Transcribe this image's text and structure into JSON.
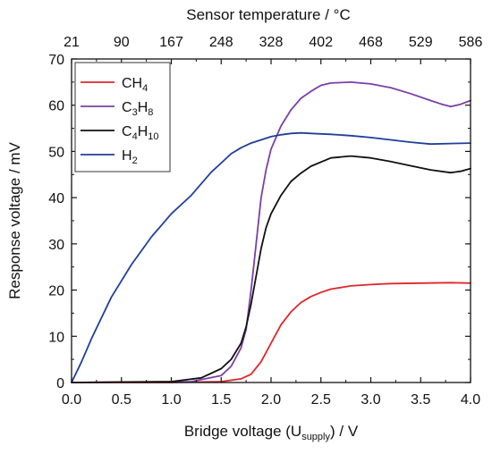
{
  "chart_data": {
    "type": "line",
    "xlabel": "Bridge voltage (U",
    "xlabel_sub": "supply",
    "xlabel_suffix": ") / V",
    "ylabel": "Response voltage / mV",
    "top_xlabel": "Sensor temperature / °C",
    "xlim": [
      0,
      4.0
    ],
    "ylim": [
      0,
      70
    ],
    "x_ticks": [
      "0.0",
      "0.5",
      "1.0",
      "1.5",
      "2.0",
      "2.5",
      "3.0",
      "3.5",
      "4.0"
    ],
    "x_tick_values": [
      0.0,
      0.5,
      1.0,
      1.5,
      2.0,
      2.5,
      3.0,
      3.5,
      4.0
    ],
    "y_ticks": [
      "0",
      "10",
      "20",
      "30",
      "40",
      "50",
      "60",
      "70"
    ],
    "y_tick_values": [
      0,
      10,
      20,
      30,
      40,
      50,
      60,
      70
    ],
    "top_ticks": [
      "21",
      "90",
      "167",
      "248",
      "328",
      "402",
      "468",
      "529",
      "586"
    ],
    "grid": false,
    "legend_position": "top-left",
    "series": [
      {
        "name": "CH4",
        "legend_main": "CH",
        "legend_sub": "4",
        "color": "#e0262b",
        "x": [
          0.0,
          1.0,
          1.5,
          1.7,
          1.8,
          1.9,
          2.0,
          2.1,
          2.2,
          2.3,
          2.4,
          2.5,
          2.6,
          2.8,
          3.0,
          3.2,
          3.5,
          3.8,
          4.0
        ],
        "y": [
          0,
          0,
          0.2,
          0.8,
          1.8,
          4.5,
          8.5,
          12.5,
          15.3,
          17.3,
          18.6,
          19.5,
          20.2,
          20.9,
          21.2,
          21.4,
          21.5,
          21.6,
          21.5
        ]
      },
      {
        "name": "C3H8",
        "legend_main": "C",
        "legend_sub": "3",
        "legend_main2": "H",
        "legend_sub2": "8",
        "color": "#7b3fa6",
        "x": [
          0.0,
          1.2,
          1.5,
          1.6,
          1.7,
          1.75,
          1.8,
          1.85,
          1.9,
          1.95,
          2.0,
          2.1,
          2.2,
          2.3,
          2.4,
          2.5,
          2.6,
          2.8,
          3.0,
          3.2,
          3.4,
          3.6,
          3.7,
          3.8,
          3.9,
          4.0
        ],
        "y": [
          0,
          0.2,
          1.5,
          3.5,
          7.5,
          11.5,
          20.0,
          30.0,
          40.0,
          46.0,
          50.5,
          55.5,
          59.0,
          61.5,
          63.0,
          64.3,
          64.8,
          65.0,
          64.6,
          63.8,
          62.5,
          61.0,
          60.3,
          59.7,
          60.2,
          61.0
        ]
      },
      {
        "name": "C4H10",
        "legend_main": "C",
        "legend_sub": "4",
        "legend_main2": "H",
        "legend_sub2": "10",
        "color": "#111111",
        "x": [
          0.0,
          1.0,
          1.3,
          1.5,
          1.6,
          1.7,
          1.75,
          1.8,
          1.85,
          1.9,
          1.95,
          2.0,
          2.1,
          2.2,
          2.3,
          2.4,
          2.6,
          2.8,
          3.0,
          3.2,
          3.4,
          3.6,
          3.8,
          3.9,
          4.0
        ],
        "y": [
          0,
          0.2,
          1.0,
          3.0,
          5.0,
          8.5,
          12.0,
          17.0,
          23.0,
          29.0,
          33.5,
          36.5,
          40.5,
          43.5,
          45.3,
          46.8,
          48.6,
          49.0,
          48.6,
          47.8,
          46.9,
          46.0,
          45.4,
          45.7,
          46.3
        ]
      },
      {
        "name": "H2",
        "legend_main": "H",
        "legend_sub": "2",
        "color": "#1f3f99",
        "x": [
          0.0,
          0.1,
          0.2,
          0.3,
          0.4,
          0.5,
          0.6,
          0.7,
          0.8,
          0.9,
          1.0,
          1.1,
          1.2,
          1.3,
          1.4,
          1.5,
          1.6,
          1.7,
          1.8,
          1.9,
          2.0,
          2.1,
          2.2,
          2.3,
          2.4,
          2.6,
          2.8,
          3.0,
          3.2,
          3.4,
          3.6,
          3.8,
          4.0
        ],
        "y": [
          0,
          4.5,
          9.5,
          14.0,
          18.5,
          22.0,
          25.5,
          28.5,
          31.5,
          34.0,
          36.5,
          38.5,
          40.5,
          43.0,
          45.5,
          47.5,
          49.5,
          50.8,
          51.8,
          52.5,
          53.2,
          53.6,
          53.9,
          54.0,
          53.9,
          53.7,
          53.4,
          53.0,
          52.5,
          52.0,
          51.6,
          51.7,
          51.8
        ]
      }
    ]
  }
}
